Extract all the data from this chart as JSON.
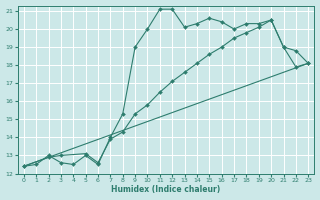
{
  "xlabel": "Humidex (Indice chaleur)",
  "background_color": "#cce8e8",
  "grid_color": "#ffffff",
  "line_color": "#2e7d6e",
  "xlim": [
    -0.5,
    23.5
  ],
  "ylim": [
    12,
    21.3
  ],
  "x_ticks": [
    0,
    1,
    2,
    3,
    4,
    5,
    6,
    7,
    8,
    9,
    10,
    11,
    12,
    13,
    14,
    15,
    16,
    17,
    18,
    19,
    20,
    21,
    22,
    23
  ],
  "y_ticks": [
    12,
    13,
    14,
    15,
    16,
    17,
    18,
    19,
    20,
    21
  ],
  "line1_x": [
    0,
    1,
    2,
    3,
    4,
    5,
    6,
    7,
    8,
    9,
    10,
    11,
    12,
    13,
    14,
    15,
    16,
    17,
    18,
    19,
    20,
    21,
    22,
    23
  ],
  "line1_y": [
    12.4,
    12.5,
    13.0,
    12.6,
    12.5,
    13.0,
    12.5,
    14.0,
    15.3,
    19.0,
    20.0,
    21.1,
    21.1,
    20.1,
    20.3,
    20.6,
    20.4,
    20.0,
    20.3,
    20.3,
    20.5,
    19.0,
    17.9,
    18.1
  ],
  "line2_x": [
    0,
    2,
    3,
    5,
    6,
    7,
    8,
    9,
    10,
    11,
    12,
    13,
    14,
    15,
    16,
    17,
    18,
    19,
    20,
    21,
    22,
    23
  ],
  "line2_y": [
    12.4,
    12.9,
    13.0,
    13.1,
    12.6,
    13.9,
    14.3,
    15.3,
    15.8,
    16.5,
    17.1,
    17.6,
    18.1,
    18.6,
    19.0,
    19.5,
    19.8,
    20.1,
    20.5,
    19.0,
    18.8,
    18.1
  ],
  "line3_x": [
    0,
    23
  ],
  "line3_y": [
    12.4,
    18.1
  ]
}
